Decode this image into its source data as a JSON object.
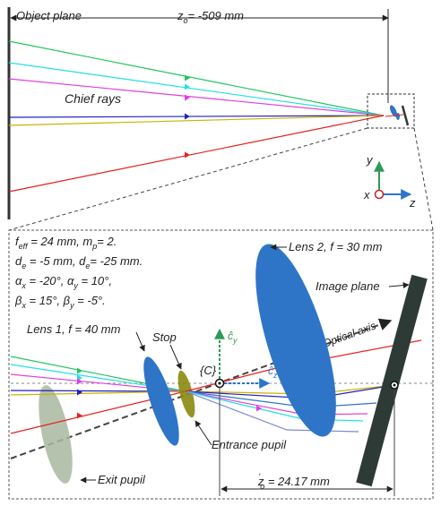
{
  "top_panel": {
    "object_plane_label": "Object plane",
    "zo_label": "z",
    "zo_sub": "o",
    "zo_value": "= -509 mm",
    "chief_rays_label": "Chief rays",
    "axes": {
      "y": "y",
      "x": "x",
      "z": "z"
    }
  },
  "params": {
    "line1": "f",
    "line1_sub": "eff",
    "line1_rest": " = 24 mm, m",
    "line1_sub2": "p",
    "line1_end": "= 2.",
    "line2": "d",
    "line2_sub": "e",
    "line2_mid": " = -5 mm, d",
    "line2_sub2": "e",
    "line2_end": "= -25 mm.",
    "line3": "α",
    "line3_sub": "x",
    "line3_mid": " = -20°, α",
    "line3_sub2": "y",
    "line3_end": " = 10°,",
    "line4": "β",
    "line4_sub": "x",
    "line4_mid": " = 15°, β",
    "line4_sub2": "y",
    "line4_end": " = -5°."
  },
  "labels": {
    "lens1": "Lens 1, f = 40 mm",
    "lens2": "Lens 2, f = 30 mm",
    "stop": "Stop",
    "image_plane": "Image plane",
    "optical_axis": "Optical axis",
    "C": "{C}",
    "cy": "ĉ",
    "cy_sub": "y",
    "cz": "ĉ",
    "cz_sub": "z",
    "entrance_pupil": "Entrance pupil",
    "exit_pupil": "Exit pupil",
    "zo_prime": "z",
    "zo_prime_sub": "o",
    "zo_prime_value": " = 24.17 mm"
  },
  "colors": {
    "green": "#22c55e",
    "cyan": "#22e0e0",
    "magenta": "#e040e0",
    "blue": "#2020c0",
    "yellow": "#c8b400",
    "red": "#e82020",
    "lens": "#2e75c8",
    "stop": "#8a8a10",
    "exit_pupil": "#a8b8a0",
    "image_plane": "#2e3a36"
  }
}
